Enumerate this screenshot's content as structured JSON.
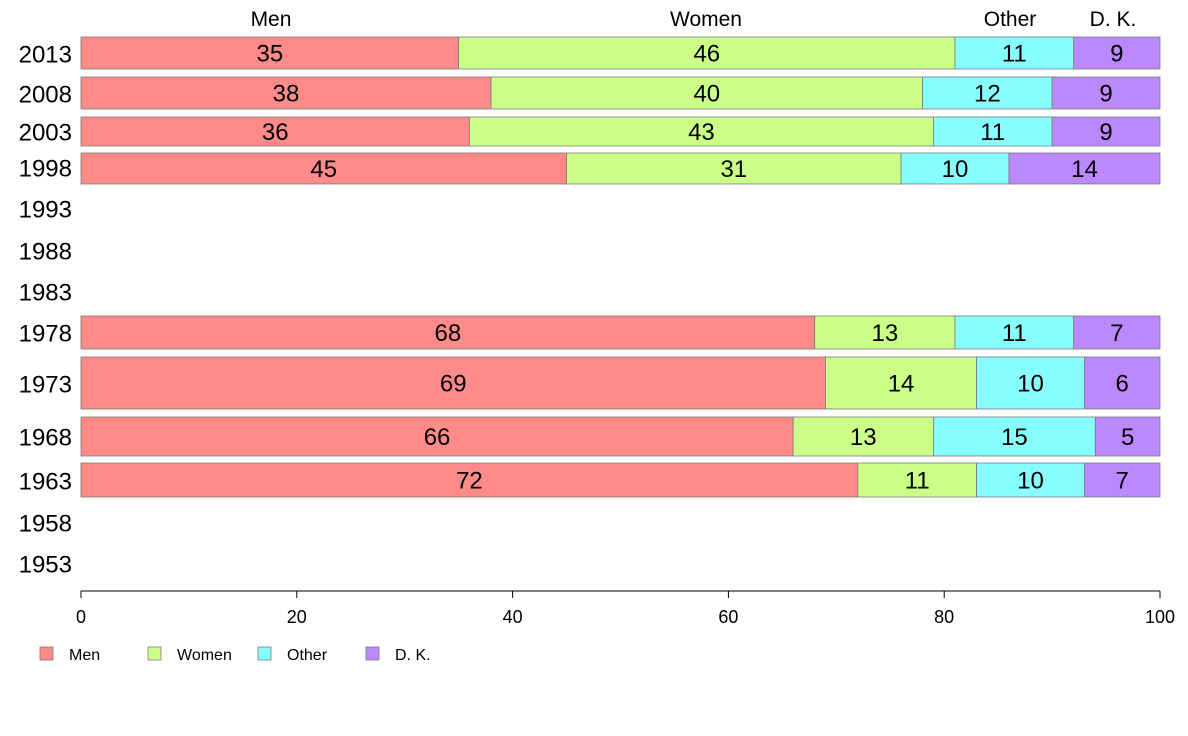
{
  "chart_data": {
    "type": "bar",
    "orientation": "horizontal",
    "stacked": true,
    "categories": [
      "2013",
      "2008",
      "2003",
      "1998",
      "1993",
      "1988",
      "1983",
      "1978",
      "1973",
      "1968",
      "1963",
      "1958",
      "1953"
    ],
    "series": [
      {
        "name": "Men",
        "color": "#FF8A8A",
        "values": [
          35,
          38,
          36,
          45,
          null,
          null,
          null,
          68,
          69,
          66,
          72,
          null,
          null
        ]
      },
      {
        "name": "Women",
        "color": "#CCFF88",
        "values": [
          46,
          40,
          43,
          31,
          null,
          null,
          null,
          13,
          14,
          13,
          11,
          null,
          null
        ]
      },
      {
        "name": "Other",
        "color": "#88FFFF",
        "values": [
          11,
          12,
          11,
          10,
          null,
          null,
          null,
          11,
          10,
          15,
          10,
          null,
          null
        ]
      },
      {
        "name": "D. K.",
        "color": "#BB88FF",
        "values": [
          9,
          9,
          9,
          14,
          null,
          null,
          null,
          7,
          6,
          5,
          7,
          null,
          null
        ]
      }
    ],
    "xlim": [
      0,
      100
    ],
    "xticks": [
      0,
      20,
      40,
      60,
      80,
      100
    ],
    "top_labels": [
      "Men",
      "Women",
      "Other",
      "D. K."
    ],
    "legend": [
      "Men",
      "Women",
      "Other",
      "D. K."
    ],
    "legend_position": "bottom-left",
    "grid": false
  }
}
